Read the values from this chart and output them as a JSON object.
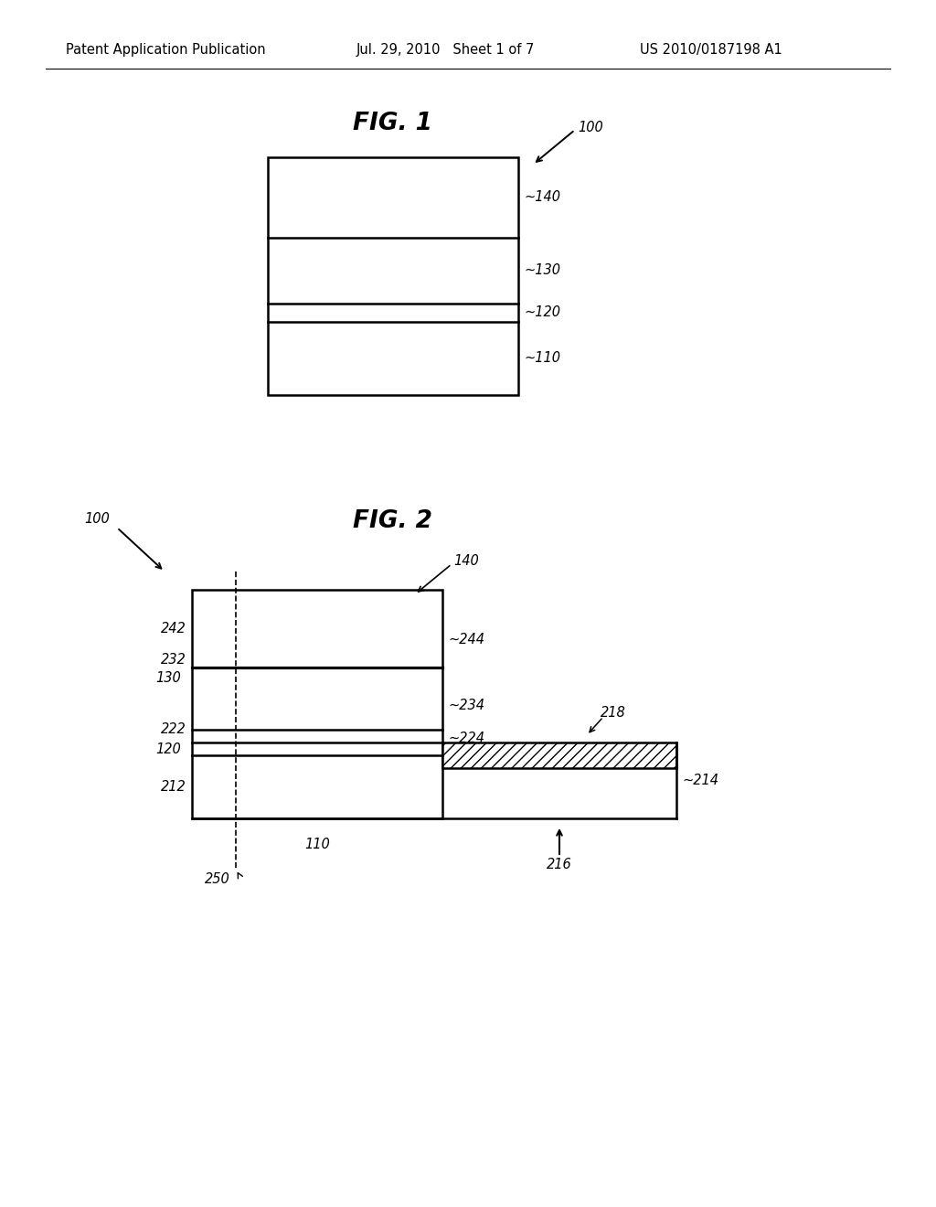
{
  "background_color": "#ffffff",
  "header_left": "Patent Application Publication",
  "header_center": "Jul. 29, 2010   Sheet 1 of 7",
  "header_right": "US 2010/0187198 A1",
  "header_fontsize": 10.5,
  "fig1_title": "FIG. 1",
  "fig1_title_fontsize": 19,
  "fig2_title": "FIG. 2",
  "fig2_title_fontsize": 19,
  "label_fontsize": 10.5
}
